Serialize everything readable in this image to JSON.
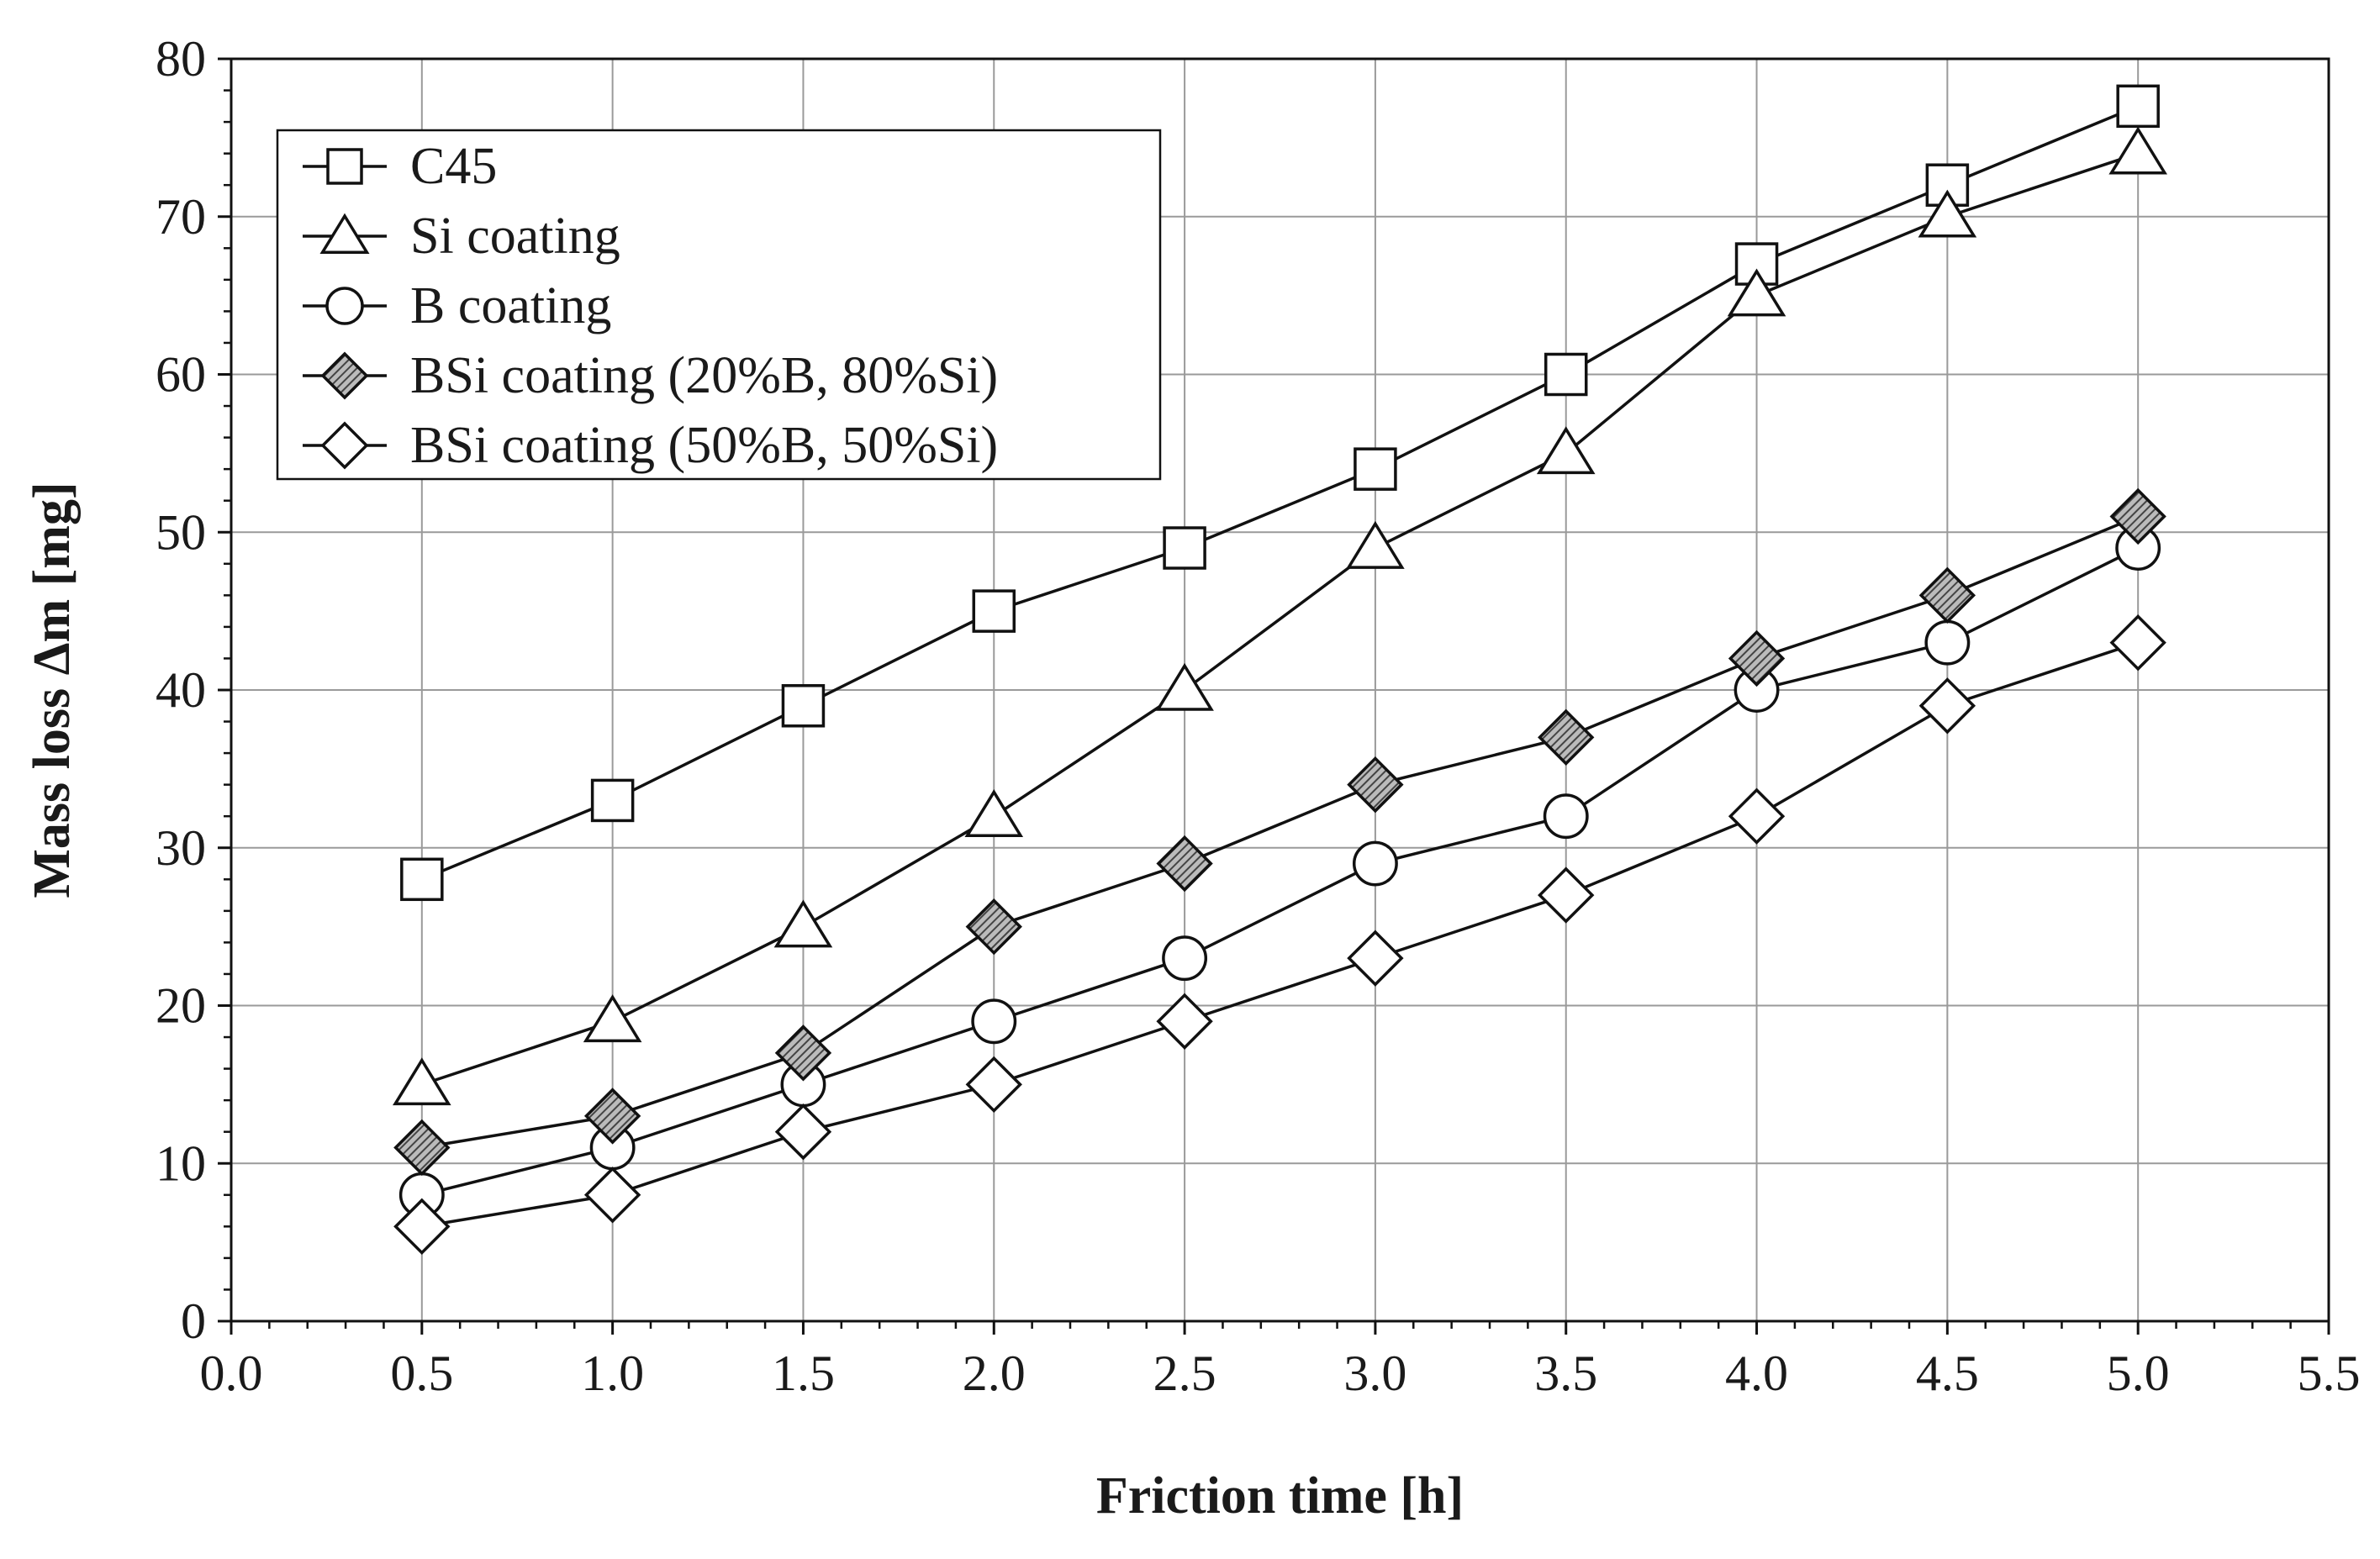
{
  "chart_data": {
    "type": "line",
    "title": "",
    "xlabel": "Friction time [h]",
    "ylabel": "Mass loss Δm [mg]",
    "xlim": [
      0.0,
      5.5
    ],
    "ylim": [
      0,
      80
    ],
    "x_ticks": [
      0.0,
      0.5,
      1.0,
      1.5,
      2.0,
      2.5,
      3.0,
      3.5,
      4.0,
      4.5,
      5.0,
      5.5
    ],
    "x_tick_labels": [
      "0.0",
      "0.5",
      "1.0",
      "1.5",
      "2.0",
      "2.5",
      "3.0",
      "3.5",
      "4.0",
      "4.5",
      "5.0",
      "5.5"
    ],
    "y_ticks": [
      0,
      10,
      20,
      30,
      40,
      50,
      60,
      70,
      80
    ],
    "y_tick_labels": [
      "0",
      "10",
      "20",
      "30",
      "40",
      "50",
      "60",
      "70",
      "80"
    ],
    "grid": true,
    "legend_position": "top-left",
    "x": [
      0.5,
      1.0,
      1.5,
      2.0,
      2.5,
      3.0,
      3.5,
      4.0,
      4.5,
      5.0
    ],
    "series": [
      {
        "name": "C45",
        "marker": "square",
        "fill": "#ffffff",
        "values": [
          28,
          33,
          39,
          45,
          49,
          54,
          60,
          67,
          72,
          77
        ]
      },
      {
        "name": "Si coating",
        "marker": "triangle",
        "fill": "#ffffff",
        "values": [
          15,
          19,
          25,
          32,
          40,
          49,
          55,
          65,
          70,
          74
        ]
      },
      {
        "name": "B coating",
        "marker": "circle",
        "fill": "#ffffff",
        "values": [
          8,
          11,
          15,
          19,
          23,
          29,
          32,
          40,
          43,
          49
        ]
      },
      {
        "name": "BSi coating (20%B, 80%Si)",
        "marker": "diamond",
        "fill": "hatched",
        "values": [
          11,
          13,
          17,
          25,
          29,
          34,
          37,
          42,
          46,
          51
        ]
      },
      {
        "name": "BSi coating (50%B, 50%Si)",
        "marker": "diamond",
        "fill": "#ffffff",
        "values": [
          6,
          8,
          12,
          15,
          19,
          23,
          27,
          32,
          39,
          43
        ]
      }
    ]
  },
  "colors": {
    "line": "#111111",
    "grid": "#9a9a9a",
    "hatch_dark": "#444444",
    "hatch_light": "#bbbbbb",
    "background": "#ffffff"
  }
}
